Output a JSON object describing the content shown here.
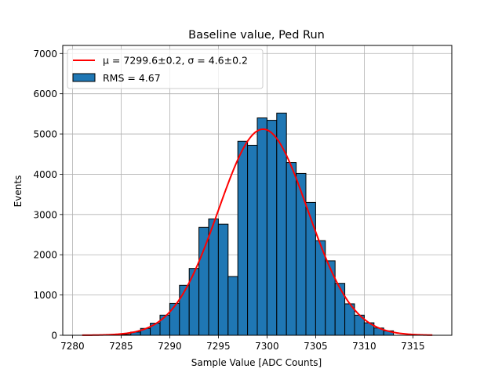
{
  "chart_data": {
    "type": "bar",
    "title": "Baseline value, Ped Run",
    "xlabel": "Sample Value [ADC Counts]",
    "ylabel": "Events",
    "xlim": [
      7279,
      7319
    ],
    "ylim": [
      0,
      7200
    ],
    "xticks": [
      7280,
      7285,
      7290,
      7295,
      7300,
      7305,
      7310,
      7315
    ],
    "yticks": [
      0,
      1000,
      2000,
      3000,
      4000,
      5000,
      6000,
      7000
    ],
    "grid": true,
    "legend_position": "top-left",
    "colors": {
      "bar_fill": "#1f77b4",
      "bar_edge": "#000000",
      "fit_line": "#ff0000",
      "grid": "#b0b0b0"
    },
    "series": [
      {
        "name": "RMS = 4.67",
        "kind": "histogram",
        "bin_width": 1,
        "bin_left_edges": [
          7285,
          7286,
          7287,
          7288,
          7289,
          7290,
          7291,
          7292,
          7293,
          7294,
          7295,
          7296,
          7297,
          7298,
          7299,
          7300,
          7301,
          7302,
          7303,
          7304,
          7305,
          7306,
          7307,
          7308,
          7309,
          7310,
          7311,
          7312
        ],
        "values": [
          20,
          80,
          170,
          300,
          500,
          790,
          1240,
          1660,
          2680,
          2890,
          2760,
          1460,
          4820,
          4720,
          5400,
          5340,
          5520,
          4290,
          4020,
          3300,
          2350,
          1850,
          1290,
          780,
          500,
          310,
          180,
          110
        ]
      },
      {
        "name": "μ = 7299.6±0.2, σ = 4.6±0.2",
        "kind": "gaussian_fit",
        "mu": 7299.6,
        "sigma": 4.6,
        "amplitude": 5120,
        "x_range": [
          7281,
          7317
        ]
      }
    ]
  }
}
